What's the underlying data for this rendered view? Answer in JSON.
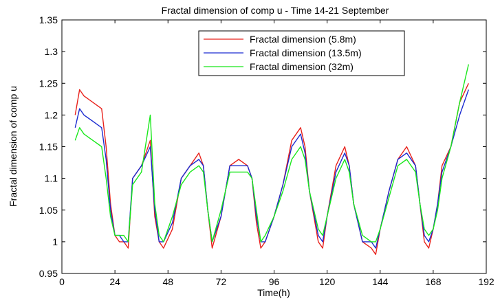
{
  "chart_data": {
    "type": "line",
    "title": "Fractal dimension of comp u - Time 14-21 September",
    "xlabel": "Time(h)",
    "ylabel": "Fractal dimension of comp u",
    "xlim": [
      0,
      192
    ],
    "ylim": [
      0.95,
      1.35
    ],
    "xticks": [
      0,
      24,
      48,
      72,
      96,
      120,
      144,
      168,
      192
    ],
    "yticks": [
      0.95,
      1,
      1.05,
      1.1,
      1.15,
      1.2,
      1.25,
      1.3,
      1.35
    ],
    "grid": false,
    "legend_position": "top-right",
    "series": [
      {
        "name": "Fractal dimension (5.8m)",
        "color": "#e8211b",
        "x": [
          6,
          8,
          10,
          14,
          18,
          20,
          22,
          24,
          26,
          28,
          30,
          32,
          36,
          40,
          42,
          44,
          46,
          50,
          54,
          58,
          62,
          64,
          66,
          68,
          72,
          76,
          80,
          84,
          86,
          88,
          90,
          92,
          96,
          100,
          104,
          108,
          110,
          112,
          116,
          118,
          120,
          124,
          128,
          130,
          132,
          136,
          140,
          142,
          144,
          148,
          152,
          156,
          160,
          162,
          164,
          166,
          168,
          170,
          172,
          176,
          180,
          184
        ],
        "y": [
          1.2,
          1.24,
          1.23,
          1.22,
          1.21,
          1.15,
          1.06,
          1.01,
          1.0,
          1.0,
          0.99,
          1.1,
          1.12,
          1.16,
          1.04,
          1.0,
          0.99,
          1.02,
          1.1,
          1.12,
          1.14,
          1.12,
          1.05,
          0.99,
          1.04,
          1.12,
          1.13,
          1.12,
          1.1,
          1.03,
          0.99,
          1.0,
          1.04,
          1.09,
          1.16,
          1.18,
          1.15,
          1.08,
          1.0,
          0.99,
          1.04,
          1.12,
          1.15,
          1.12,
          1.06,
          1.0,
          0.99,
          0.98,
          1.02,
          1.08,
          1.13,
          1.15,
          1.12,
          1.06,
          1.0,
          0.99,
          1.02,
          1.06,
          1.12,
          1.15,
          1.22,
          1.25
        ]
      },
      {
        "name": "Fractal dimension (13.5m)",
        "color": "#1b2bd0",
        "x": [
          6,
          8,
          10,
          14,
          18,
          20,
          22,
          24,
          26,
          28,
          30,
          32,
          36,
          40,
          42,
          44,
          46,
          50,
          54,
          58,
          62,
          64,
          66,
          68,
          72,
          76,
          80,
          84,
          86,
          88,
          90,
          92,
          96,
          100,
          104,
          108,
          110,
          112,
          116,
          118,
          120,
          124,
          128,
          130,
          132,
          136,
          140,
          142,
          144,
          148,
          152,
          156,
          160,
          162,
          164,
          166,
          168,
          170,
          172,
          176,
          180,
          184
        ],
        "y": [
          1.18,
          1.21,
          1.2,
          1.19,
          1.18,
          1.13,
          1.05,
          1.01,
          1.01,
          1.0,
          1.0,
          1.1,
          1.12,
          1.15,
          1.05,
          1.0,
          1.0,
          1.03,
          1.1,
          1.12,
          1.13,
          1.12,
          1.05,
          1.0,
          1.04,
          1.12,
          1.12,
          1.12,
          1.1,
          1.04,
          1.0,
          1.0,
          1.04,
          1.09,
          1.15,
          1.17,
          1.14,
          1.08,
          1.01,
          1.0,
          1.04,
          1.11,
          1.14,
          1.12,
          1.06,
          1.0,
          1.0,
          0.99,
          1.02,
          1.08,
          1.13,
          1.14,
          1.12,
          1.06,
          1.01,
          1.0,
          1.02,
          1.06,
          1.11,
          1.15,
          1.2,
          1.24
        ]
      },
      {
        "name": "Fractal dimension (32m)",
        "color": "#19e81b",
        "x": [
          6,
          8,
          10,
          14,
          18,
          20,
          22,
          24,
          26,
          28,
          30,
          32,
          36,
          40,
          42,
          44,
          46,
          50,
          54,
          58,
          62,
          64,
          66,
          68,
          72,
          76,
          80,
          84,
          86,
          88,
          90,
          92,
          96,
          100,
          104,
          108,
          110,
          112,
          116,
          118,
          120,
          124,
          128,
          130,
          132,
          136,
          140,
          142,
          144,
          148,
          152,
          156,
          160,
          162,
          164,
          166,
          168,
          170,
          172,
          176,
          180,
          184
        ],
        "y": [
          1.16,
          1.18,
          1.17,
          1.16,
          1.15,
          1.1,
          1.04,
          1.01,
          1.01,
          1.01,
          1.0,
          1.09,
          1.11,
          1.2,
          1.06,
          1.01,
          1.0,
          1.04,
          1.09,
          1.11,
          1.12,
          1.11,
          1.05,
          1.0,
          1.05,
          1.11,
          1.11,
          1.11,
          1.1,
          1.05,
          1.0,
          1.01,
          1.04,
          1.08,
          1.13,
          1.15,
          1.13,
          1.08,
          1.02,
          1.01,
          1.04,
          1.1,
          1.13,
          1.11,
          1.06,
          1.01,
          1.0,
          1.0,
          1.02,
          1.07,
          1.12,
          1.13,
          1.11,
          1.06,
          1.02,
          1.01,
          1.02,
          1.05,
          1.1,
          1.15,
          1.22,
          1.28
        ]
      }
    ]
  }
}
